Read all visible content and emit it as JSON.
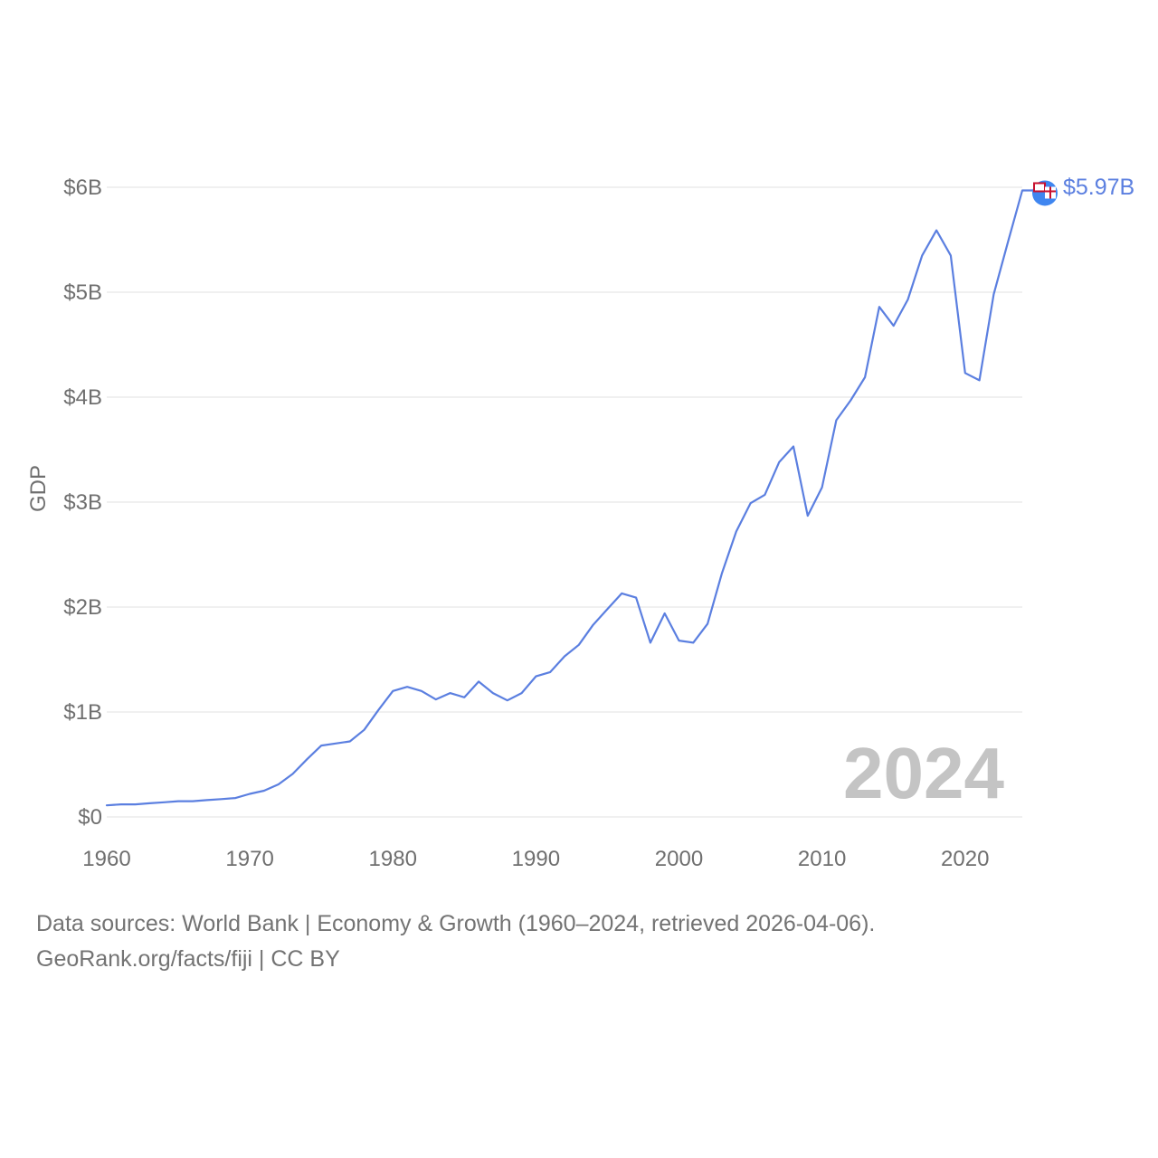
{
  "chart_data": {
    "type": "line",
    "title": "",
    "xlabel": "",
    "ylabel": "GDP",
    "xlim": [
      1960,
      2024
    ],
    "ylim": [
      0,
      6
    ],
    "y_unit": "billion USD",
    "x_ticks": [
      1960,
      1970,
      1980,
      1990,
      2000,
      2010,
      2020
    ],
    "y_ticks": [
      {
        "value": 0,
        "label": "$0"
      },
      {
        "value": 1,
        "label": "$1B"
      },
      {
        "value": 2,
        "label": "$2B"
      },
      {
        "value": 3,
        "label": "$3B"
      },
      {
        "value": 4,
        "label": "$4B"
      },
      {
        "value": 5,
        "label": "$5B"
      },
      {
        "value": 6,
        "label": "$6B"
      }
    ],
    "grid": true,
    "series": [
      {
        "name": "Fiji",
        "color": "#5b7fe0",
        "x": [
          1960,
          1961,
          1962,
          1963,
          1964,
          1965,
          1966,
          1967,
          1968,
          1969,
          1970,
          1971,
          1972,
          1973,
          1974,
          1975,
          1976,
          1977,
          1978,
          1979,
          1980,
          1981,
          1982,
          1983,
          1984,
          1985,
          1986,
          1987,
          1988,
          1989,
          1990,
          1991,
          1992,
          1993,
          1994,
          1995,
          1996,
          1997,
          1998,
          1999,
          2000,
          2001,
          2002,
          2003,
          2004,
          2005,
          2006,
          2007,
          2008,
          2009,
          2010,
          2011,
          2012,
          2013,
          2014,
          2015,
          2016,
          2017,
          2018,
          2019,
          2020,
          2021,
          2022,
          2023,
          2024
        ],
        "values": [
          0.11,
          0.12,
          0.12,
          0.13,
          0.14,
          0.15,
          0.15,
          0.16,
          0.17,
          0.18,
          0.22,
          0.25,
          0.31,
          0.41,
          0.55,
          0.68,
          0.7,
          0.72,
          0.83,
          1.02,
          1.2,
          1.24,
          1.2,
          1.12,
          1.18,
          1.14,
          1.29,
          1.18,
          1.11,
          1.18,
          1.34,
          1.38,
          1.53,
          1.64,
          1.83,
          1.98,
          2.13,
          2.09,
          1.66,
          1.94,
          1.68,
          1.66,
          1.84,
          2.32,
          2.72,
          2.99,
          3.07,
          3.38,
          3.53,
          2.87,
          3.14,
          3.78,
          3.97,
          4.19,
          4.86,
          4.68,
          4.93,
          5.35,
          5.59,
          5.35,
          4.23,
          4.16,
          4.98,
          5.48,
          5.97
        ]
      }
    ],
    "end_label": "$5.97B",
    "end_marker": "fiji-flag",
    "year_watermark": "2024"
  },
  "footer": {
    "source_line": "Data sources: World Bank | Economy & Growth (1960–2024, retrieved 2026-04-06).",
    "credit_line": "GeoRank.org/facts/fiji | CC BY"
  }
}
